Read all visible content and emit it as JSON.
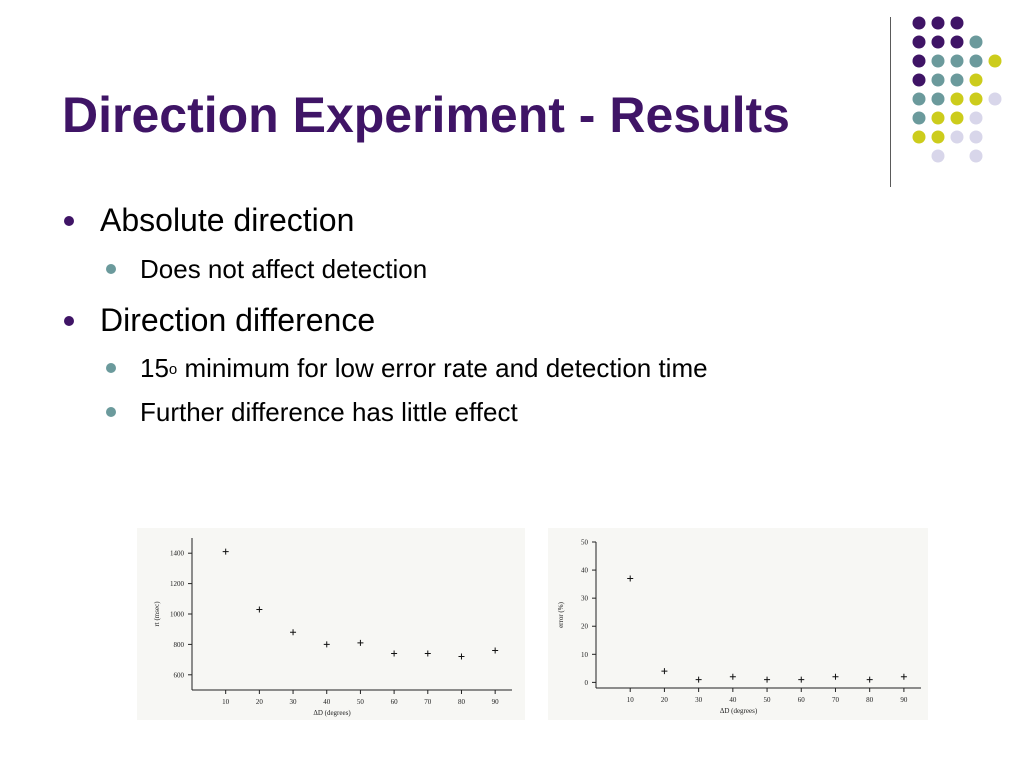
{
  "slide": {
    "title": "Direction Experiment - Results",
    "bullets": [
      {
        "text": "Absolute direction",
        "sub": [
          "Does not affect detection"
        ]
      },
      {
        "text": "Direction difference",
        "sub": [
          {
            "pre": "15",
            "sup": "o",
            "post": " minimum for low error rate and detection time"
          },
          "Further difference has little effect"
        ]
      }
    ]
  },
  "decoration": {
    "colors": [
      "#3f1466",
      "#6b9a9c",
      "#cccc1c",
      "#d8d6ea"
    ],
    "dot_grid": [
      [
        0,
        0,
        0,
        null
      ],
      [
        0,
        0,
        0,
        1,
        null
      ],
      [
        0,
        1,
        1,
        1,
        2
      ],
      [
        0,
        1,
        1,
        2
      ],
      [
        1,
        1,
        2,
        2,
        3
      ],
      [
        1,
        2,
        2,
        3
      ],
      [
        2,
        2,
        3,
        3
      ],
      [
        null,
        3,
        null,
        3
      ]
    ]
  },
  "chart_data": [
    {
      "type": "scatter",
      "xlabel": "ΔD (degrees)",
      "ylabel": "rt (msec)",
      "xticks": [
        10,
        20,
        30,
        40,
        50,
        60,
        70,
        80,
        90
      ],
      "yticks": [
        600,
        800,
        1000,
        1200,
        1400
      ],
      "xlim": [
        0,
        95
      ],
      "ylim": [
        500,
        1500
      ],
      "x": [
        10,
        20,
        30,
        40,
        50,
        60,
        70,
        80,
        90
      ],
      "y": [
        1410,
        1030,
        880,
        800,
        810,
        740,
        740,
        720,
        760
      ]
    },
    {
      "type": "scatter",
      "xlabel": "ΔD (degrees)",
      "ylabel": "error (%)",
      "xticks": [
        10,
        20,
        30,
        40,
        50,
        60,
        70,
        80,
        90
      ],
      "yticks": [
        0,
        10,
        20,
        30,
        40,
        50
      ],
      "xlim": [
        0,
        95
      ],
      "ylim": [
        -2,
        50
      ],
      "x": [
        10,
        20,
        30,
        40,
        50,
        60,
        70,
        80,
        90
      ],
      "y": [
        37,
        4,
        1,
        2,
        1,
        1,
        2,
        1,
        2
      ]
    }
  ]
}
